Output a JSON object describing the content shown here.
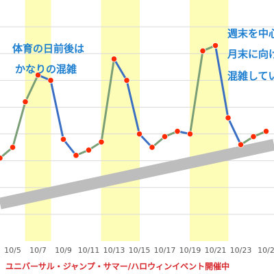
{
  "chart_data": {
    "type": "line",
    "x": [
      "10/4",
      "10/5",
      "10/6",
      "10/7",
      "10/8",
      "10/9",
      "10/10",
      "10/11",
      "10/12",
      "10/13",
      "10/14",
      "10/15",
      "10/16",
      "10/17",
      "10/18",
      "10/19",
      "10/20",
      "10/21",
      "10/22",
      "10/23",
      "10/24",
      "10/25"
    ],
    "values": [
      51,
      55,
      72,
      82,
      80,
      58,
      52,
      54,
      57,
      88,
      80,
      60,
      55,
      59,
      61,
      60,
      91,
      93,
      66,
      56,
      59,
      61
    ],
    "xticks": [
      "10/5",
      "10/7",
      "10/9",
      "10/11",
      "10/13",
      "10/15",
      "10/17",
      "10/19",
      "10/21",
      "10/23",
      "10/2"
    ],
    "highlight_ranges": [
      [
        "10/7",
        "10/7"
      ],
      [
        "10/13",
        "10/14"
      ],
      [
        "10/20",
        "10/21"
      ]
    ],
    "trend": {
      "start": 34,
      "end": 56
    },
    "ylim": [
      20,
      110
    ],
    "grid": true,
    "colors": {
      "line_left": "#3a6fc4",
      "line_right": "#7a9e76",
      "marker": "#ff2a00",
      "highlight": "#fdfdb8",
      "trend": "#bdbdbd",
      "grid": "#d9d9d9"
    }
  },
  "annotations": {
    "left_line1": "体育の日前後は",
    "left_line2": "かなりの混雑",
    "right_line1": "週末を中心",
    "right_line2": "月末に向け",
    "right_line3": "混雑してい"
  },
  "banner": "ユニバーサル・ジャンプ・サマー/ハロウィンイベント開催中"
}
